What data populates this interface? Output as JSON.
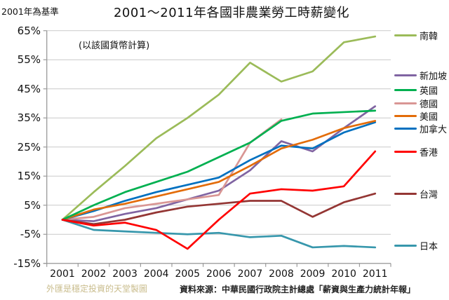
{
  "header": {
    "baseline_note": "2001年為基準",
    "title": "2001～2011年各國非農業勞工時薪變化",
    "subtitle": "(以該國貨幣計算)"
  },
  "footer": {
    "watermark": "外匯是穩定投資的天堂製圖",
    "source": "資料來源：中華民國行政院主計總處「薪資與生產力統計年報」"
  },
  "chart_data": {
    "type": "line",
    "title": "2001～2011年各國非農業勞工時薪變化",
    "subtitle": "(以該國貨幣計算)",
    "baseline": "2001年為基準 (2001 = 0%)",
    "categories": [
      "2001",
      "2002",
      "2003",
      "2004",
      "2005",
      "2006",
      "2007",
      "2008",
      "2009",
      "2010",
      "2011"
    ],
    "ylim": [
      -15,
      65
    ],
    "ytick_step": 10,
    "ytick_labels": [
      "65%",
      "55%",
      "45%",
      "35%",
      "25%",
      "15%",
      "5%",
      "-5%",
      "-15%"
    ],
    "grid": "horizontal",
    "legend_position": "right",
    "series": [
      {
        "key": "south-korea",
        "name": "南韓",
        "color": "#9BBB59",
        "values": [
          0,
          9.5,
          18.5,
          28,
          35,
          43,
          54,
          47.5,
          51,
          61,
          63
        ]
      },
      {
        "key": "singapore",
        "name": "新加坡",
        "color": "#8064A2",
        "values": [
          0,
          -0.5,
          2,
          4,
          7,
          10,
          17,
          27,
          23.5,
          31.5,
          39
        ]
      },
      {
        "key": "uk",
        "name": "英國",
        "color": "#00B050",
        "values": [
          0,
          5,
          9.5,
          13,
          16.5,
          21.5,
          26.5,
          34,
          36.5,
          37,
          37.5
        ]
      },
      {
        "key": "germany",
        "name": "德國",
        "color": "#D99694",
        "values": [
          0,
          1,
          4,
          5.5,
          7,
          8.5,
          26.5,
          34.5,
          null,
          null,
          null
        ]
      },
      {
        "key": "usa",
        "name": "美國",
        "color": "#E36C09",
        "values": [
          0,
          3.5,
          5.5,
          8,
          10.5,
          13,
          18.5,
          24.5,
          27.5,
          31.5,
          34
        ]
      },
      {
        "key": "canada",
        "name": "加拿大",
        "color": "#0070C0",
        "values": [
          0,
          3,
          6.5,
          9.5,
          12,
          14.5,
          20.5,
          25.5,
          24.5,
          30,
          33.5
        ]
      },
      {
        "key": "hong-kong",
        "name": "香港",
        "color": "#FF0000",
        "values": [
          0,
          -2,
          -1,
          -3.5,
          -10,
          0,
          9,
          10.5,
          10,
          11.5,
          23.5
        ]
      },
      {
        "key": "taiwan",
        "name": "台灣",
        "color": "#943634",
        "values": [
          0,
          -1.5,
          0,
          2.5,
          4.5,
          5.5,
          6.5,
          6.5,
          1,
          6,
          9
        ]
      },
      {
        "key": "japan",
        "name": "日本",
        "color": "#3797AC",
        "values": [
          0,
          -3.5,
          -4,
          -4.5,
          -5,
          -4.5,
          -6,
          -5.5,
          -9.5,
          -9,
          -9.5
        ]
      }
    ]
  }
}
